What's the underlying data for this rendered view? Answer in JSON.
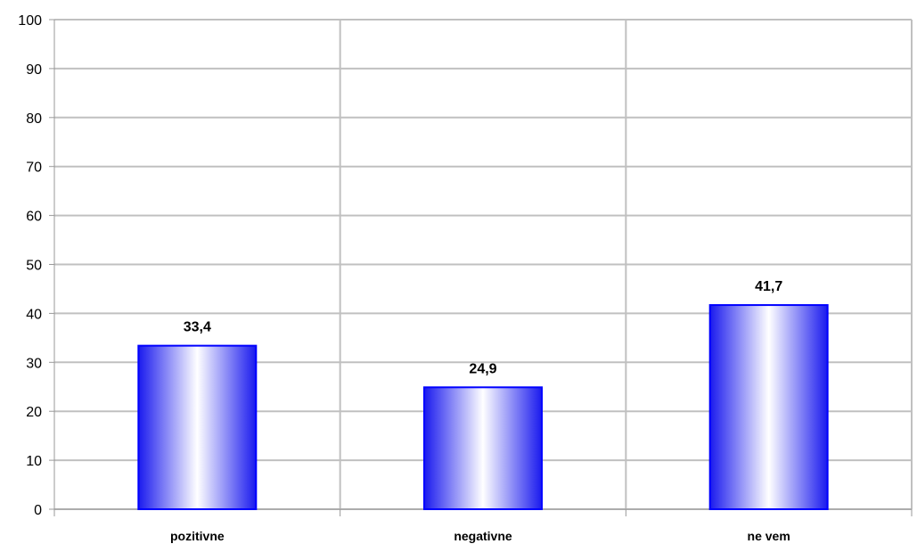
{
  "chart_data": {
    "type": "bar",
    "categories": [
      "pozitivne",
      "negativne",
      "ne vem"
    ],
    "values": [
      33.4,
      24.9,
      41.7
    ],
    "value_labels": [
      "33,4",
      "24,9",
      "41,7"
    ],
    "ylim": [
      0,
      100
    ],
    "yticks": [
      "0",
      "10",
      "20",
      "30",
      "40",
      "50",
      "60",
      "70",
      "80",
      "90",
      "100"
    ],
    "title": "",
    "xlabel": "",
    "ylabel": "",
    "grid": true,
    "legend": "none",
    "colors": {
      "bar_edge": "#0000ff",
      "bar_dark": "#1a1aee",
      "bar_light": "#ffffff",
      "grid": "#c0c0c0",
      "axis": "#999999"
    }
  }
}
